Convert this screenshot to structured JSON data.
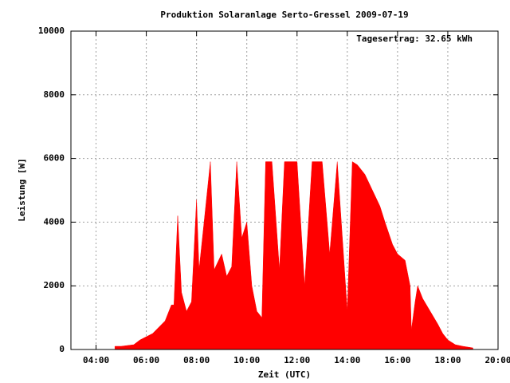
{
  "chart_data": {
    "type": "area",
    "title": "Produktion Solaranlage Serto-Gressel 2009-07-19",
    "annotation": "Tagesertrag: 32.65 kWh",
    "x_label": "Zeit (UTC)",
    "y_label": "Leistung [W]",
    "color": "#ff0000",
    "grid": true,
    "xlim": [
      3,
      20
    ],
    "ylim": [
      0,
      10000
    ],
    "xticks": [
      {
        "value": 4,
        "label": "04:00"
      },
      {
        "value": 6,
        "label": "06:00"
      },
      {
        "value": 8,
        "label": "08:00"
      },
      {
        "value": 10,
        "label": "10:00"
      },
      {
        "value": 12,
        "label": "12:00"
      },
      {
        "value": 14,
        "label": "14:00"
      },
      {
        "value": 16,
        "label": "16:00"
      },
      {
        "value": 18,
        "label": "18:00"
      },
      {
        "value": 20,
        "label": "20:00"
      }
    ],
    "yticks": [
      0,
      2000,
      4000,
      6000,
      8000,
      10000
    ],
    "x": [
      4.75,
      5.0,
      5.5,
      5.75,
      6.0,
      6.25,
      6.5,
      6.75,
      7.0,
      7.1,
      7.25,
      7.4,
      7.6,
      7.8,
      8.0,
      8.1,
      8.3,
      8.55,
      8.7,
      9.0,
      9.2,
      9.4,
      9.6,
      9.8,
      10.0,
      10.2,
      10.4,
      10.6,
      10.75,
      11.0,
      11.3,
      11.5,
      11.8,
      12.0,
      12.3,
      12.6,
      13.0,
      13.3,
      13.6,
      14.0,
      14.2,
      14.4,
      14.7,
      15.0,
      15.3,
      15.5,
      15.8,
      16.0,
      16.3,
      16.5,
      16.55,
      16.7,
      16.8,
      17.0,
      17.3,
      17.6,
      17.8,
      18.0,
      18.3,
      18.6,
      19.0
    ],
    "values": [
      100,
      100,
      150,
      300,
      400,
      500,
      700,
      900,
      1400,
      1400,
      4200,
      1800,
      1200,
      1500,
      4700,
      2500,
      4000,
      5900,
      2500,
      3000,
      2300,
      2600,
      5900,
      3500,
      4000,
      2000,
      1200,
      1000,
      5900,
      5900,
      2500,
      5900,
      5900,
      5900,
      2000,
      5900,
      5900,
      3000,
      5900,
      1200,
      5900,
      5800,
      5500,
      5000,
      4500,
      4000,
      3300,
      3000,
      2800,
      2000,
      600,
      1500,
      2000,
      1600,
      1200,
      800,
      500,
      300,
      150,
      100,
      50
    ]
  }
}
